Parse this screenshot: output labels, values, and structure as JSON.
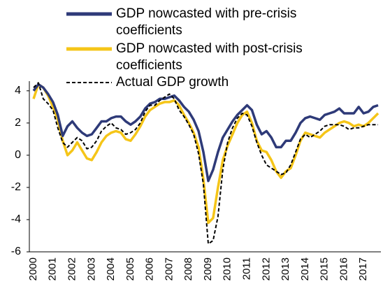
{
  "chart_data": {
    "type": "line",
    "categories": [
      "2000",
      null,
      null,
      null,
      "2001",
      null,
      null,
      null,
      "2002",
      null,
      null,
      null,
      "2003",
      null,
      null,
      null,
      "2004",
      null,
      null,
      null,
      "2005",
      null,
      null,
      null,
      "2006",
      null,
      null,
      null,
      "2007",
      null,
      null,
      null,
      "2008",
      null,
      null,
      null,
      "2009",
      null,
      null,
      null,
      "2010",
      null,
      null,
      null,
      "2011",
      null,
      null,
      null,
      "2012",
      null,
      null,
      null,
      "2013",
      null,
      null,
      null,
      "2014",
      null,
      null,
      null,
      "2015",
      null,
      null,
      null,
      "2016",
      null,
      null,
      null,
      "2017",
      null,
      null,
      null
    ],
    "series": [
      {
        "name": "GDP nowcasted with pre-crisis coefficients",
        "color": "#2e3a78",
        "values": [
          4.0,
          4.4,
          4.2,
          3.8,
          3.3,
          2.5,
          1.2,
          1.8,
          2.1,
          1.7,
          1.4,
          1.2,
          1.3,
          1.7,
          2.1,
          2.1,
          2.3,
          2.4,
          2.4,
          2.1,
          1.9,
          2.1,
          2.4,
          2.9,
          3.2,
          3.3,
          3.5,
          3.5,
          3.6,
          3.7,
          3.4,
          3.0,
          2.7,
          2.2,
          1.5,
          0.2,
          -1.6,
          -0.9,
          0.2,
          1.1,
          1.6,
          2.1,
          2.5,
          2.8,
          3.1,
          2.8,
          1.9,
          1.3,
          1.5,
          1.1,
          0.5,
          0.5,
          0.9,
          0.9,
          1.4,
          2.0,
          2.3,
          2.4,
          2.3,
          2.2,
          2.5,
          2.6,
          2.7,
          2.9,
          2.6,
          2.6,
          2.6,
          3.0,
          2.6,
          2.7,
          3.0,
          3.1
        ]
      },
      {
        "name": "GDP nowcasted with post-crisis coefficients",
        "color": "#f5c518",
        "values": [
          3.5,
          4.4,
          4.2,
          3.7,
          3.0,
          2.2,
          0.9,
          0.0,
          0.3,
          0.8,
          0.3,
          -0.2,
          -0.3,
          0.2,
          0.8,
          1.2,
          1.4,
          1.5,
          1.4,
          1.0,
          0.9,
          1.3,
          1.8,
          2.4,
          2.8,
          3.0,
          3.2,
          3.3,
          3.3,
          3.4,
          3.1,
          2.5,
          2.0,
          1.4,
          0.5,
          -1.5,
          -4.2,
          -3.9,
          -2.0,
          -0.3,
          0.6,
          1.3,
          2.0,
          2.5,
          2.7,
          2.0,
          0.9,
          0.3,
          0.2,
          -0.3,
          -1.0,
          -1.4,
          -1.0,
          -0.8,
          0.0,
          0.9,
          1.4,
          1.3,
          1.2,
          1.1,
          1.4,
          1.6,
          1.8,
          2.0,
          2.1,
          2.0,
          1.8,
          1.9,
          1.8,
          2.0,
          2.3,
          2.6
        ]
      },
      {
        "name": "Actual GDP growth",
        "color": "#000000",
        "dashed": true,
        "values": [
          4.2,
          4.5,
          3.5,
          3.2,
          2.8,
          1.7,
          0.8,
          0.5,
          0.8,
          1.1,
          0.9,
          0.4,
          0.5,
          0.9,
          1.5,
          1.8,
          2.0,
          1.7,
          1.6,
          1.3,
          1.4,
          1.6,
          2.0,
          2.7,
          3.1,
          3.1,
          3.4,
          3.6,
          3.8,
          3.5,
          2.8,
          2.4,
          1.9,
          1.3,
          0.1,
          -1.8,
          -5.5,
          -5.3,
          -3.8,
          -0.9,
          0.8,
          1.7,
          2.3,
          2.6,
          2.5,
          1.8,
          0.8,
          0.0,
          -0.6,
          -0.8,
          -1.0,
          -1.2,
          -1.1,
          -0.6,
          0.2,
          1.0,
          1.3,
          1.1,
          1.3,
          1.5,
          1.8,
          1.9,
          1.9,
          1.9,
          1.8,
          1.6,
          1.7,
          1.7,
          1.8,
          1.9,
          1.9,
          1.9
        ]
      }
    ],
    "ylim": [
      -6,
      4.6
    ],
    "yticks": [
      -6,
      -4,
      -2,
      0,
      2,
      4
    ]
  }
}
